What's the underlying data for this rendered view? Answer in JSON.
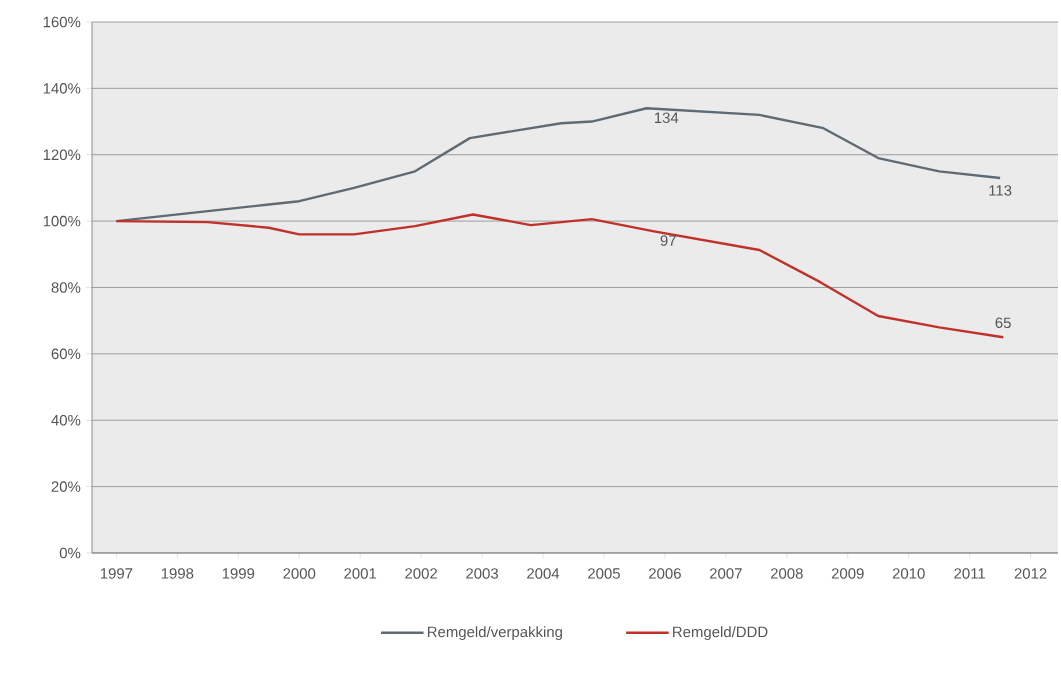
{
  "chart_data": {
    "type": "line",
    "xlim": [
      1996.6,
      2012.45
    ],
    "xticks": [
      1997,
      1998,
      1999,
      2000,
      2001,
      2002,
      2003,
      2004,
      2005,
      2006,
      2007,
      2008,
      2009,
      2010,
      2011,
      2012
    ],
    "ylim": [
      0,
      160
    ],
    "yticks": [
      {
        "value": 0,
        "label": "0%"
      },
      {
        "value": 20,
        "label": "20%"
      },
      {
        "value": 40,
        "label": "40%"
      },
      {
        "value": 60,
        "label": "60%"
      },
      {
        "value": 80,
        "label": "80%"
      },
      {
        "value": 100,
        "label": "100%"
      },
      {
        "value": 120,
        "label": "120%"
      },
      {
        "value": 140,
        "label": "140%"
      },
      {
        "value": 160,
        "label": "160%"
      }
    ],
    "grid": "y",
    "legend": "bottom",
    "series": [
      {
        "name": "Remgeld/verpakking",
        "color": "#5f6b73",
        "x": [
          1997.0,
          1998.5,
          1999.5,
          2000.0,
          2000.9,
          2001.9,
          2002.8,
          2004.3,
          2004.8,
          2005.7,
          2007.55,
          2008.6,
          2009.5,
          2010.5,
          2011.5
        ],
        "values": [
          100,
          103,
          105,
          106,
          110,
          115,
          125,
          129.5,
          130,
          134,
          132,
          128,
          119,
          115,
          113
        ]
      },
      {
        "name": "Remgeld/DDD",
        "color": "#c0312b",
        "x": [
          1997.0,
          1998.5,
          1999.5,
          2000.0,
          2000.9,
          2001.9,
          2002.85,
          2003.8,
          2004.8,
          2005.8,
          2007.55,
          2008.55,
          2009.5,
          2010.5,
          2011.55
        ],
        "values": [
          100,
          99.7,
          98,
          96,
          96,
          98.5,
          102,
          98.8,
          100.6,
          97,
          91.3,
          81.6,
          71.4,
          68,
          65
        ]
      }
    ],
    "annotations": [
      {
        "text": "134",
        "x": 2005.7,
        "y": 134
      },
      {
        "text": "113",
        "x": 2011.5,
        "y": 113
      },
      {
        "text": "97",
        "x": 2005.8,
        "y": 97
      },
      {
        "text": "65",
        "x": 2011.55,
        "y": 65
      }
    ]
  }
}
